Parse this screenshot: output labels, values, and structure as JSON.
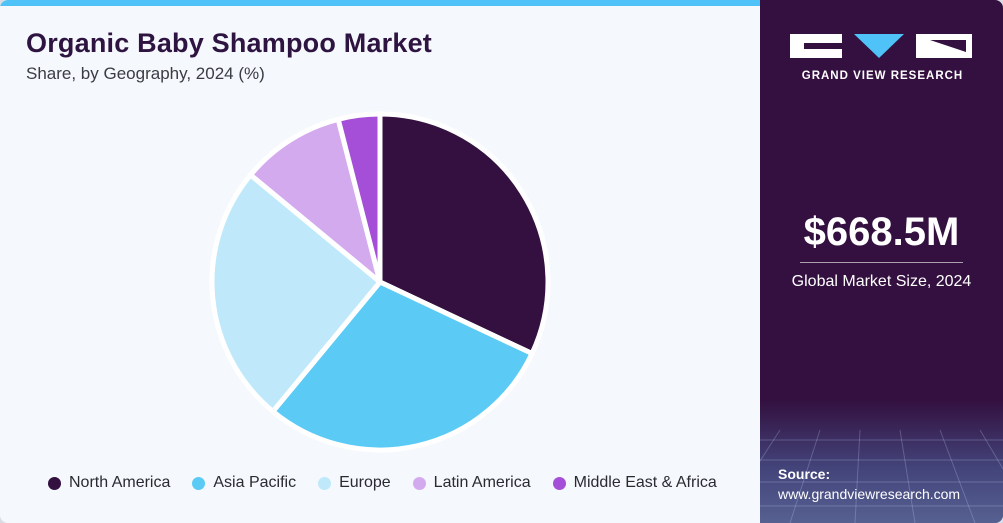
{
  "header": {
    "title": "Organic Baby Shampoo Market",
    "subtitle": "Share, by Geography, 2024 (%)"
  },
  "chart_data": {
    "type": "pie",
    "categories": [
      "North America",
      "Asia Pacific",
      "Europe",
      "Latin America",
      "Middle East & Africa"
    ],
    "values": [
      32,
      29,
      25,
      10,
      4
    ],
    "colors": [
      "#33103f",
      "#5bcbf5",
      "#bfe9fb",
      "#d4aaef",
      "#a54fd8"
    ],
    "legend_position": "bottom"
  },
  "brand": {
    "logo_icon": "gvr-logo-icon",
    "name": "GRAND VIEW RESEARCH"
  },
  "market": {
    "value": "$668.5M",
    "label": "Global Market Size, 2024"
  },
  "source": {
    "label": "Source:",
    "url": "www.grandviewresearch.com"
  }
}
